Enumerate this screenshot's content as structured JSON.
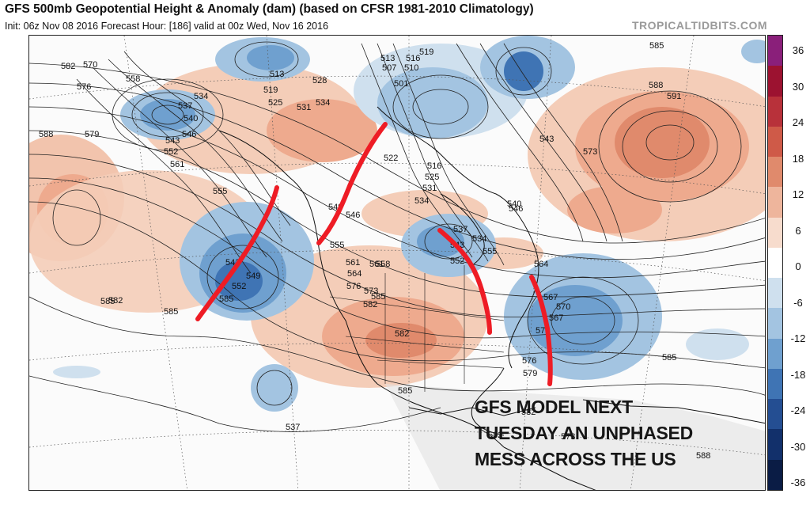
{
  "header": {
    "title": "GFS 500mb Geopotential Height & Anomaly (dam) (based on CFSR 1981-2010 Climatology)",
    "subtitle": "Init: 06z Nov 08 2016   Forecast Hour: [186]   valid at 00z Wed, Nov 16 2016",
    "brand": "TROPICALTIDBITS.COM"
  },
  "colorbar": {
    "labels": [
      "36",
      "30",
      "24",
      "18",
      "12",
      "6",
      "0",
      "-6",
      "-12",
      "-18",
      "-24",
      "-30",
      "-36"
    ],
    "colors": [
      "#8a1f7a",
      "#9c1230",
      "#b8313a",
      "#cf5a48",
      "#e08a6c",
      "#eeb59c",
      "#f7dccd",
      "#ffffff",
      "#cfe0ee",
      "#a3c4e1",
      "#6fa0cf",
      "#3f74b4",
      "#244e92",
      "#12306b",
      "#0a1c45"
    ]
  },
  "contour_labels": [
    "582",
    "570",
    "558",
    "576",
    "588",
    "579",
    "534",
    "537",
    "540",
    "546",
    "543",
    "552",
    "561",
    "555",
    "513",
    "519",
    "525",
    "528",
    "531",
    "534",
    "513",
    "507",
    "501",
    "510",
    "516",
    "519",
    "585",
    "588",
    "591",
    "543",
    "573",
    "522",
    "516",
    "525",
    "531",
    "534",
    "546",
    "549",
    "546",
    "555",
    "558",
    "561",
    "564",
    "561",
    "564",
    "540",
    "534",
    "537",
    "543",
    "552",
    "555",
    "567",
    "573",
    "576",
    "579",
    "573",
    "576",
    "582",
    "585",
    "582",
    "585",
    "585",
    "582",
    "582",
    "585",
    "573",
    "567",
    "570",
    "549",
    "552",
    "543",
    "537",
    "585",
    "588",
    "585",
    "582"
  ],
  "annotation": {
    "lines": [
      "GFS MODEL NEXT",
      "TUESDAY AN UNPHASED",
      "MESS ACROSS THE US"
    ]
  },
  "trough_lines_color": "#ee1c25"
}
